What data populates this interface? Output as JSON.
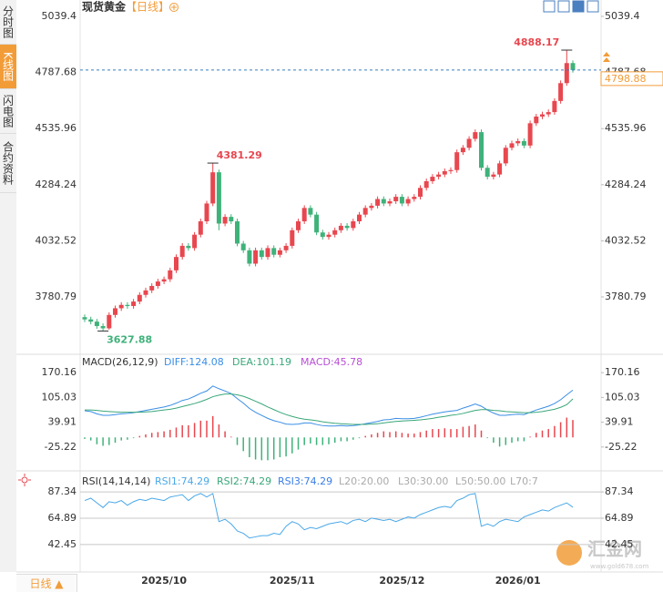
{
  "sidebar": {
    "tabs": [
      "分时图",
      "K线图",
      "闪电图",
      "合约资料"
    ]
  },
  "footer": {
    "button": "日线 ▲"
  },
  "watermark": {
    "title": "汇金网",
    "url": "www.gold678.com"
  },
  "chart_data": [
    {
      "type": "candlestick",
      "title": "现货黄金",
      "subtitle": "【日线】",
      "up_color": "#e8474f",
      "down_color": "#3fb27a",
      "categories": [
        null,
        null,
        null,
        null,
        null,
        null,
        null,
        null,
        null,
        null,
        null,
        null,
        null,
        "2025/10",
        null,
        null,
        null,
        null,
        null,
        null,
        null,
        null,
        null,
        null,
        null,
        null,
        null,
        null,
        null,
        null,
        null,
        null,
        null,
        null,
        "2025/11",
        null,
        null,
        null,
        null,
        null,
        null,
        null,
        null,
        null,
        null,
        null,
        null,
        null,
        null,
        null,
        null,
        null,
        "2025/12",
        null,
        null,
        null,
        null,
        null,
        null,
        null,
        null,
        null,
        null,
        null,
        null,
        null,
        null,
        null,
        null,
        null,
        null,
        "2026/01",
        null,
        null,
        null,
        null,
        null,
        null,
        null,
        null,
        null
      ],
      "open": [
        3690,
        3680,
        3670,
        3650,
        3640,
        3700,
        3730,
        3745,
        3740,
        3760,
        3790,
        3810,
        3830,
        3850,
        3860,
        3900,
        3960,
        4010,
        4000,
        4060,
        4120,
        4200,
        4340,
        4110,
        4140,
        4120,
        4020,
        3990,
        3930,
        3990,
        3960,
        4000,
        3970,
        3990,
        4010,
        4080,
        4120,
        4180,
        4150,
        4070,
        4050,
        4060,
        4080,
        4100,
        4090,
        4120,
        4150,
        4180,
        4190,
        4220,
        4200,
        4210,
        4230,
        4200,
        4220,
        4230,
        4270,
        4300,
        4320,
        4330,
        4345,
        4350,
        4430,
        4450,
        4490,
        4520,
        4360,
        4320,
        4330,
        4380,
        4450,
        4470,
        4480,
        4460,
        4560,
        4590,
        4600,
        4610,
        4660,
        4740,
        4830
      ],
      "high": [
        3702,
        3692,
        3682,
        3662,
        3712,
        3742,
        3757,
        3757,
        3772,
        3802,
        3822,
        3842,
        3862,
        3872,
        3912,
        3972,
        4022,
        4022,
        4072,
        4132,
        4212,
        4381.29,
        4352,
        4152,
        4152,
        4132,
        4032,
        4002,
        4002,
        4002,
        4012,
        4012,
        4002,
        4022,
        4092,
        4132,
        4192,
        4192,
        4162,
        4082,
        4072,
        4092,
        4112,
        4112,
        4132,
        4162,
        4192,
        4202,
        4232,
        4232,
        4222,
        4242,
        4242,
        4232,
        4242,
        4282,
        4312,
        4332,
        4342,
        4357,
        4362,
        4442,
        4462,
        4502,
        4532,
        4532,
        4372,
        4342,
        4392,
        4462,
        4482,
        4492,
        4492,
        4572,
        4602,
        4612,
        4622,
        4672,
        4752,
        4888.17,
        4842
      ],
      "low": [
        3668,
        3658,
        3638,
        3627.88,
        3634,
        3688,
        3718,
        3728,
        3728,
        3748,
        3778,
        3798,
        3818,
        3838,
        3848,
        3888,
        3948,
        3988,
        3988,
        4048,
        4108,
        4188,
        4080,
        4098,
        4108,
        4008,
        3978,
        3918,
        3918,
        3948,
        3948,
        3958,
        3958,
        3978,
        3998,
        4068,
        4108,
        4138,
        4058,
        4038,
        4038,
        4048,
        4068,
        4078,
        4078,
        4108,
        4138,
        4168,
        4178,
        4188,
        4188,
        4198,
        4188,
        4188,
        4208,
        4218,
        4258,
        4288,
        4308,
        4318,
        4333,
        4338,
        4418,
        4438,
        4478,
        4348,
        4308,
        4308,
        4318,
        4368,
        4438,
        4458,
        4448,
        4448,
        4548,
        4578,
        4588,
        4598,
        4648,
        4728,
        4787
      ],
      "close": [
        3680,
        3670,
        3650,
        3640,
        3700,
        3730,
        3745,
        3740,
        3760,
        3790,
        3810,
        3830,
        3850,
        3860,
        3900,
        3960,
        4010,
        4000,
        4060,
        4120,
        4200,
        4340,
        4110,
        4140,
        4120,
        4020,
        3990,
        3930,
        3990,
        3960,
        4000,
        3970,
        3990,
        4010,
        4080,
        4120,
        4180,
        4150,
        4070,
        4050,
        4060,
        4080,
        4100,
        4090,
        4120,
        4150,
        4180,
        4190,
        4220,
        4200,
        4210,
        4230,
        4200,
        4220,
        4230,
        4270,
        4300,
        4320,
        4330,
        4345,
        4350,
        4430,
        4450,
        4490,
        4520,
        4360,
        4320,
        4330,
        4380,
        4450,
        4470,
        4480,
        4460,
        4560,
        4590,
        4600,
        4610,
        4660,
        4740,
        4830,
        4798.88
      ],
      "ylim": [
        3527.5,
        5080.3
      ],
      "yticks": [
        3780.79,
        4032.52,
        4284.24,
        4535.96,
        4787.68,
        5039.4
      ],
      "grid": false
    },
    {
      "type": "macd",
      "title": "MACD(26,12,9)",
      "ylim": [
        -83.1,
        211.2
      ],
      "yticks": [
        -25.22,
        39.91,
        105.03,
        170.16
      ],
      "grid": false,
      "series": [
        {
          "label": "DIFF:124.08",
          "color": "#3a8ee6",
          "values": [
            70,
            68,
            62,
            58,
            58,
            60,
            62,
            63,
            65,
            68,
            71,
            74,
            77,
            80,
            84,
            90,
            97,
            101,
            108,
            116,
            122,
            135,
            128,
            122,
            115,
            102,
            90,
            76,
            66,
            58,
            50,
            44,
            40,
            35,
            34,
            35,
            38,
            38,
            34,
            31,
            30,
            30,
            31,
            30,
            31,
            33,
            36,
            39,
            42,
            46,
            47,
            50,
            49,
            49,
            50,
            53,
            57,
            61,
            64,
            67,
            69,
            71,
            77,
            82,
            88,
            82,
            72,
            64,
            58,
            58,
            60,
            61,
            60,
            66,
            72,
            77,
            82,
            89,
            99,
            112,
            124.08
          ]
        },
        {
          "label": "DEA:101.19",
          "color": "#3aa77a",
          "values": [
            72,
            72,
            71,
            69,
            68,
            67,
            66,
            66,
            66,
            66,
            67,
            68,
            70,
            72,
            74,
            77,
            81,
            85,
            89,
            94,
            100,
            107,
            111,
            114,
            114,
            112,
            108,
            102,
            95,
            88,
            80,
            73,
            66,
            60,
            55,
            51,
            48,
            46,
            44,
            41,
            39,
            37,
            36,
            35,
            34,
            34,
            34,
            35,
            36,
            38,
            40,
            42,
            43,
            44,
            45,
            46,
            48,
            50,
            53,
            55,
            58,
            60,
            63,
            67,
            71,
            73,
            73,
            71,
            70,
            68,
            67,
            66,
            65,
            65,
            66,
            68,
            71,
            74,
            79,
            86,
            101.19
          ]
        },
        {
          "label": "MACD:45.78",
          "color": "#b84fd6",
          "up_color": "#e8474f",
          "down_color": "#3fb27a",
          "values": [
            -4,
            -8,
            -18,
            -22,
            -20,
            -14,
            -8,
            -6,
            -2,
            4,
            8,
            12,
            14,
            16,
            20,
            26,
            32,
            32,
            38,
            44,
            44,
            56,
            34,
            16,
            2,
            -20,
            -36,
            -52,
            -58,
            -60,
            -60,
            -58,
            -52,
            -50,
            -42,
            -32,
            -20,
            -16,
            -20,
            -20,
            -18,
            -14,
            -10,
            -10,
            -6,
            -2,
            4,
            8,
            12,
            16,
            14,
            16,
            12,
            10,
            10,
            14,
            18,
            22,
            22,
            24,
            22,
            22,
            28,
            30,
            34,
            18,
            -2,
            -14,
            -24,
            -20,
            -14,
            -10,
            -10,
            2,
            12,
            18,
            22,
            30,
            40,
            52,
            45.78
          ]
        }
      ]
    },
    {
      "type": "rsi",
      "title": "RSI(14,14,14)",
      "ylim": [
        19,
        103
      ],
      "yticks": [
        42.45,
        64.89,
        87.34
      ],
      "grid": true,
      "series": [
        {
          "label": "RSI1:74.29",
          "color": "#4aa8e8",
          "values": [
            80,
            82,
            78,
            74,
            79,
            78,
            80,
            76,
            79,
            81,
            80,
            82,
            81,
            80,
            83,
            84,
            85,
            80,
            84,
            86,
            83,
            86,
            62,
            64,
            60,
            54,
            52,
            48,
            49,
            50,
            50,
            52,
            51,
            58,
            62,
            60,
            55,
            57,
            56,
            58,
            60,
            61,
            62,
            60,
            63,
            64,
            62,
            65,
            64,
            63,
            64,
            62,
            64,
            66,
            65,
            68,
            70,
            72,
            74,
            75,
            74,
            80,
            82,
            85,
            86,
            58,
            60,
            58,
            62,
            64,
            63,
            62,
            66,
            68,
            70,
            72,
            71,
            74,
            76,
            78,
            74.29
          ]
        }
      ],
      "legend": [
        {
          "label": "RSI2:74.29",
          "color": "#3aa77a"
        },
        {
          "label": "RSI3:74.29",
          "color": "#3a7ee6"
        },
        {
          "label": "L20:20.00",
          "color": "#aaaaaa"
        },
        {
          "label": "L30:30.00",
          "color": "#aaaaaa"
        },
        {
          "label": "L50:50.00",
          "color": "#aaaaaa"
        },
        {
          "label": "L70:7",
          "color": "#aaaaaa"
        }
      ]
    }
  ]
}
